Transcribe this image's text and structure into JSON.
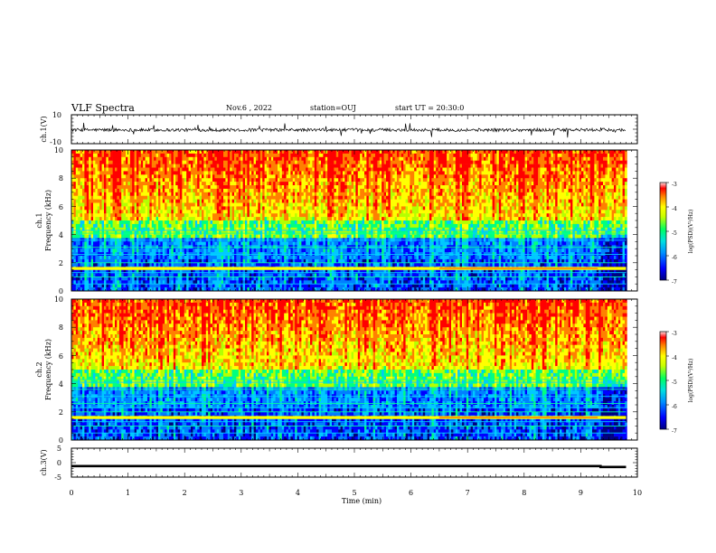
{
  "header": {
    "title": "VLF Spectra",
    "date": "Nov.6 , 2022",
    "station": "station=OUJ",
    "start_ut": "start UT = 20:30:0"
  },
  "colors": {
    "palette": [
      "#000080",
      "#0000ff",
      "#0080ff",
      "#00c8ff",
      "#00ff80",
      "#b4ff00",
      "#ffff00",
      "#ff8000",
      "#ff0000"
    ],
    "trace": "#000000"
  },
  "chart_data": [
    {
      "type": "line",
      "id": "ch1-waveform",
      "ylabel": "ch.1(V)",
      "ylim": [
        -10,
        10
      ],
      "yticks": [
        "10",
        "-10"
      ],
      "xlim": [
        0,
        10
      ],
      "baseline": -0.5,
      "series": [
        {
          "values": [
            -0.5,
            2.0,
            -1.5,
            -3.0,
            1.0,
            0.5,
            -2.0,
            1.5,
            -1.0,
            0.0
          ]
        }
      ]
    },
    {
      "type": "heatmap",
      "id": "ch1-spectrogram",
      "ylabel_lines": [
        "ch.1",
        "Frequency (kHz)"
      ],
      "xlim": [
        0,
        10
      ],
      "ylim": [
        0,
        10
      ],
      "yticks": [
        "0",
        "2",
        "4",
        "6",
        "8",
        "10"
      ],
      "data_end_min": 9.8,
      "interference_lines_khz": [
        0.5,
        1.0,
        1.3,
        1.55,
        1.65,
        2.0,
        2.6,
        3.1,
        3.6,
        4.1,
        4.3
      ],
      "colorbar": {
        "label": "log(PSD)(V²/Hz)",
        "range": [
          -7,
          -3
        ],
        "ticks": [
          "-3",
          "-4",
          "-5",
          "-6",
          "-7"
        ]
      }
    },
    {
      "type": "heatmap",
      "id": "ch2-spectrogram",
      "ylabel_lines": [
        "ch.2",
        "Frequency (kHz)"
      ],
      "xlim": [
        0,
        10
      ],
      "ylim": [
        0,
        10
      ],
      "yticks": [
        "0",
        "2",
        "4",
        "6",
        "8",
        "10"
      ],
      "data_end_min": 9.8,
      "interference_lines_khz": [
        0.5,
        1.0,
        1.3,
        1.55,
        1.65,
        2.0,
        2.3,
        2.6,
        3.1,
        3.6,
        4.1,
        4.3
      ],
      "colorbar": {
        "label": "log(PSD)(V²/Hz)",
        "range": [
          -7,
          -3
        ],
        "ticks": [
          "-3",
          "-4",
          "-5",
          "-6",
          "-7"
        ]
      }
    },
    {
      "type": "line",
      "id": "ch3-waveform",
      "ylabel": "ch.3(V)",
      "ylim": [
        -5,
        5
      ],
      "yticks": [
        "5",
        "0",
        "-5"
      ],
      "xlim": [
        0,
        10
      ],
      "xlabel": "Time (min)",
      "xticks": [
        "0",
        "1",
        "2",
        "3",
        "4",
        "5",
        "6",
        "7",
        "8",
        "9",
        "10"
      ],
      "series": [
        {
          "x": [
            0,
            9.35,
            9.35,
            9.8
          ],
          "values": [
            -1.2,
            -1.2,
            -1.5,
            -1.5
          ]
        }
      ]
    }
  ]
}
